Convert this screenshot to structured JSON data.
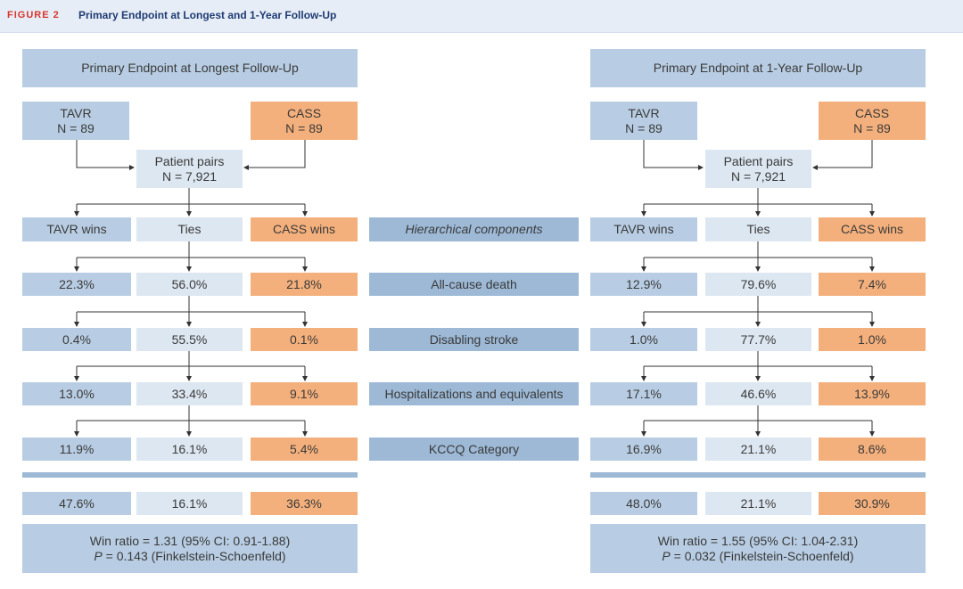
{
  "figure": {
    "label": "FIGURE 2",
    "title": "Primary Endpoint at Longest and 1-Year Follow-Up"
  },
  "panels": [
    {
      "title": "Primary Endpoint at Longest Follow-Up",
      "tavr": {
        "name": "TAVR",
        "n": "N = 89"
      },
      "cass": {
        "name": "CASS",
        "n": "N = 89"
      },
      "pairs": {
        "label": "Patient pairs",
        "n": "N = 7,921"
      },
      "outcomes": {
        "tavr": "TAVR wins",
        "ties": "Ties",
        "cass": "CASS wins"
      },
      "rows": [
        {
          "tavr": "22.3%",
          "ties": "56.0%",
          "cass": "21.8%"
        },
        {
          "tavr": "0.4%",
          "ties": "55.5%",
          "cass": "0.1%"
        },
        {
          "tavr": "13.0%",
          "ties": "33.4%",
          "cass": "9.1%"
        },
        {
          "tavr": "11.9%",
          "ties": "16.1%",
          "cass": "5.4%"
        }
      ],
      "totals": {
        "tavr": "47.6%",
        "ties": "16.1%",
        "cass": "36.3%"
      },
      "result": {
        "win_ratio": "Win ratio = 1.31 (95% CI: 0.91-1.88)",
        "p_label": "P",
        "p_text": " = 0.143 (Finkelstein-Schoenfeld)"
      }
    },
    {
      "title": "Primary Endpoint at 1-Year Follow-Up",
      "tavr": {
        "name": "TAVR",
        "n": "N = 89"
      },
      "cass": {
        "name": "CASS",
        "n": "N = 89"
      },
      "pairs": {
        "label": "Patient pairs",
        "n": "N = 7,921"
      },
      "outcomes": {
        "tavr": "TAVR wins",
        "ties": "Ties",
        "cass": "CASS wins"
      },
      "rows": [
        {
          "tavr": "12.9%",
          "ties": "79.6%",
          "cass": "7.4%"
        },
        {
          "tavr": "1.0%",
          "ties": "77.7%",
          "cass": "1.0%"
        },
        {
          "tavr": "17.1%",
          "ties": "46.6%",
          "cass": "13.9%"
        },
        {
          "tavr": "16.9%",
          "ties": "21.1%",
          "cass": "8.6%"
        }
      ],
      "totals": {
        "tavr": "48.0%",
        "ties": "21.1%",
        "cass": "30.9%"
      },
      "result": {
        "win_ratio": "Win ratio = 1.55 (95% CI: 1.04-2.31)",
        "p_label": "P",
        "p_text": " = 0.032 (Finkelstein-Schoenfeld)"
      }
    }
  ],
  "components": {
    "header": "Hierarchical components",
    "items": [
      "All-cause death",
      "Disabling stroke",
      "Hospitalizations and equivalents",
      "KCCQ Category"
    ]
  }
}
